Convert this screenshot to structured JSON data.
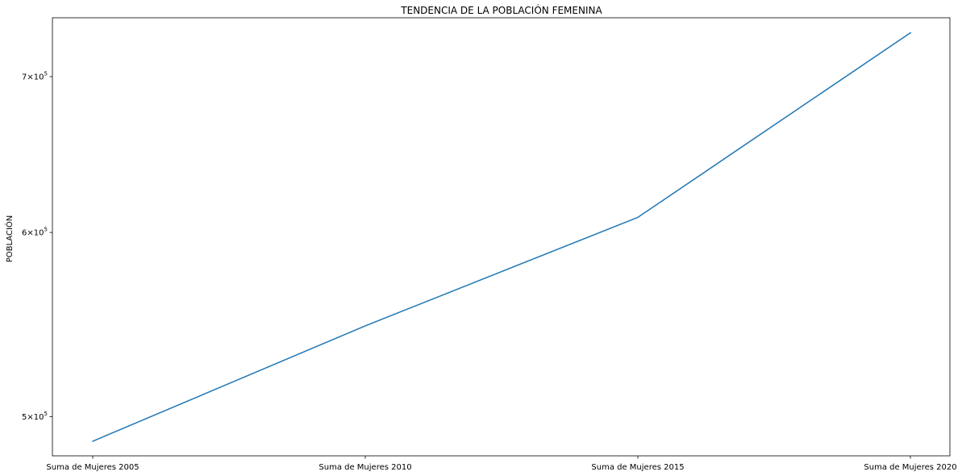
{
  "chart_data": {
    "type": "line",
    "title": "TENDENCIA DE LA POBLACIÓN FEMENINA",
    "xlabel": "",
    "ylabel": "POBLACIÓN",
    "categories": [
      "Suma de Mujeres 2005",
      "Suma de Mujeres 2010",
      "Suma de Mujeres 2015",
      "Suma de Mujeres 2020"
    ],
    "series": [
      {
        "values": [
          488000,
          547000,
          609000,
          731000
        ],
        "color": "#1f77b4"
      }
    ],
    "yscale": "log",
    "ylim": [
      481000,
      742000
    ],
    "yticks": [
      {
        "value": 500000,
        "mantissa": "5",
        "base": "10",
        "exponent": "5"
      },
      {
        "value": 600000,
        "mantissa": "6",
        "base": "10",
        "exponent": "5"
      },
      {
        "value": 700000,
        "mantissa": "7",
        "base": "10",
        "exponent": "5"
      }
    ],
    "grid": false,
    "legend": "none"
  }
}
